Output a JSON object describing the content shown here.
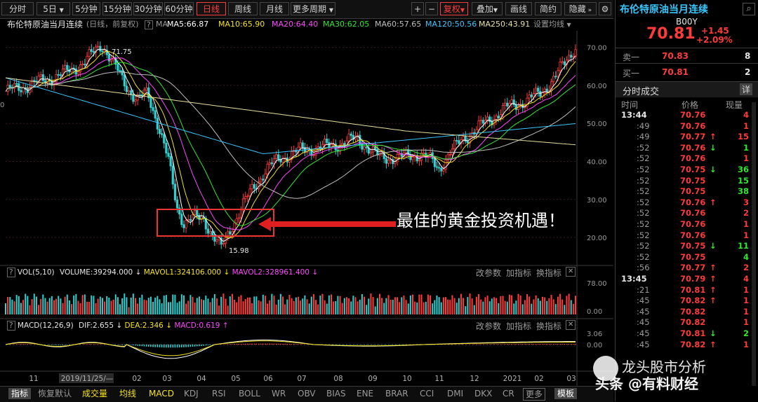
{
  "toolbar": {
    "periods": [
      "分时",
      "5日",
      "5分钟",
      "15分钟",
      "30分钟",
      "60分钟",
      "日线",
      "周线",
      "月线",
      "更多周期"
    ],
    "active_period": "日线",
    "right_buttons": [
      "+",
      "−",
      "复权",
      "叠加",
      "画线",
      "简约",
      "隐藏"
    ]
  },
  "info": {
    "title": "布伦特原油当月连续",
    "mode": "(日线，前复权)",
    "q_mark": "?",
    "ma_label": "MA",
    "ma": [
      {
        "label": "MA5:66.87",
        "color": "#ffffff"
      },
      {
        "label": "MA10:65.90",
        "color": "#f5e21b"
      },
      {
        "label": "MA20:64.40",
        "color": "#ff46ff"
      },
      {
        "label": "MA30:62.05",
        "color": "#2fe82f"
      },
      {
        "label": "MA60:57.65",
        "color": "#bfbfbf"
      },
      {
        "label": "MA120:50.56",
        "color": "#38c8ff"
      },
      {
        "label": "MA250:43.91",
        "color": "#e8e0a0"
      }
    ],
    "settings": "设置均线"
  },
  "price_chart": {
    "y_ticks": [
      "70.00",
      "60.00",
      "50.00",
      "40.00",
      "30.00",
      "20.00"
    ],
    "high_label": "71.75",
    "low_label": "15.98",
    "left_cut_label": "0"
  },
  "annotation": {
    "text": "最佳的黄金投资机遇！"
  },
  "vol_panel": {
    "q": "?",
    "name": "VOL(5,10)",
    "volume": "VOLUME:39294.000",
    "mavol1": "MAVOL1:324106.000",
    "mavol2": "MAVOL2:328961.400",
    "options": [
      "改参数",
      "加指标",
      "换指标"
    ],
    "y_ticks": [
      "78.00",
      "0.00"
    ]
  },
  "macd_panel": {
    "q": "?",
    "name": "MACD(12,26,9)",
    "dif": "DIF:2.655",
    "dea": "DEA:2.346",
    "macd": "MACD:0.619",
    "options": [
      "改参数",
      "加指标",
      "换指标"
    ],
    "y_ticks": [
      "3.06",
      "0.00"
    ]
  },
  "x_axis": {
    "labels": [
      "11",
      "2019/11/25/—",
      "02",
      "03",
      "04",
      "05",
      "06",
      "07",
      "08",
      "09",
      "10",
      "11",
      "12",
      "2021",
      "02",
      "03"
    ]
  },
  "tabs": {
    "items": [
      "指标",
      "恢复默认",
      "成交量",
      "均线",
      "MACD",
      "KDJ",
      "RSI",
      "BOLL",
      "WR",
      "OBV",
      "BIAS",
      "ENE",
      "BRAR",
      "CCI",
      "DMI",
      "DKX",
      "CR",
      "更多",
      "模板"
    ]
  },
  "quote": {
    "title": "布伦特原油当月连续",
    "code": "B00Y",
    "price": "70.81",
    "change": "+1.45",
    "change_pct": "+2.09%",
    "sell_label": "卖一",
    "sell_price": "70.83",
    "sell_vol": "8",
    "buy_label": "买一",
    "buy_price": "70.81",
    "buy_vol": "2",
    "trades_title": "分时成交",
    "detail_btn": "详",
    "col_time": "时间",
    "col_price": "价格",
    "col_vol": "现量"
  },
  "trades": [
    {
      "t": "13:44",
      "p": "70.76",
      "a": "",
      "v": "4",
      "c": "red"
    },
    {
      "t": ":49",
      "p": "70.76",
      "a": "",
      "v": "1",
      "c": "red"
    },
    {
      "t": ":49",
      "p": "70.77",
      "a": "↑",
      "v": "15",
      "c": "red"
    },
    {
      "t": ":52",
      "p": "70.76",
      "a": "↓",
      "v": "1",
      "c": "green"
    },
    {
      "t": ":52",
      "p": "70.76",
      "a": "",
      "v": "1",
      "c": "red"
    },
    {
      "t": ":52",
      "p": "70.75",
      "a": "↓",
      "v": "36",
      "c": "green"
    },
    {
      "t": ":52",
      "p": "70.75",
      "a": "",
      "v": "15",
      "c": "green"
    },
    {
      "t": ":52",
      "p": "70.75",
      "a": "",
      "v": "38",
      "c": "green"
    },
    {
      "t": ":52",
      "p": "70.76",
      "a": "↑",
      "v": "3",
      "c": "red"
    },
    {
      "t": ":52",
      "p": "70.76",
      "a": "",
      "v": "2",
      "c": "red"
    },
    {
      "t": ":52",
      "p": "70.76",
      "a": "",
      "v": "1",
      "c": "red"
    },
    {
      "t": ":52",
      "p": "70.76",
      "a": "",
      "v": "1",
      "c": "red"
    },
    {
      "t": ":52",
      "p": "70.75",
      "a": "↓",
      "v": "11",
      "c": "green"
    },
    {
      "t": ":52",
      "p": "70.75",
      "a": "",
      "v": "4",
      "c": "green"
    },
    {
      "t": ":56",
      "p": "70.77",
      "a": "↑",
      "v": "2",
      "c": "red"
    },
    {
      "t": "13:45",
      "p": "70.79",
      "a": "↑",
      "v": "4",
      "c": "red"
    },
    {
      "t": ":21",
      "p": "70.81",
      "a": "↑",
      "v": "1",
      "c": "red"
    },
    {
      "t": ":45",
      "p": "70.82",
      "a": "↑",
      "v": "1",
      "c": "red"
    },
    {
      "t": ":45",
      "p": "70.82",
      "a": "",
      "v": "1",
      "c": "red"
    },
    {
      "t": ":45",
      "p": "70.82",
      "a": "",
      "v": "1",
      "c": "red"
    },
    {
      "t": ":45",
      "p": "70.81",
      "a": "↓",
      "v": "2",
      "c": "green"
    },
    {
      "t": ":45",
      "p": "70.82",
      "a": "↑",
      "v": "1",
      "c": "red"
    }
  ],
  "watermark": {
    "line1": "龙头股市分析",
    "line2": "头条 @有料财经"
  }
}
